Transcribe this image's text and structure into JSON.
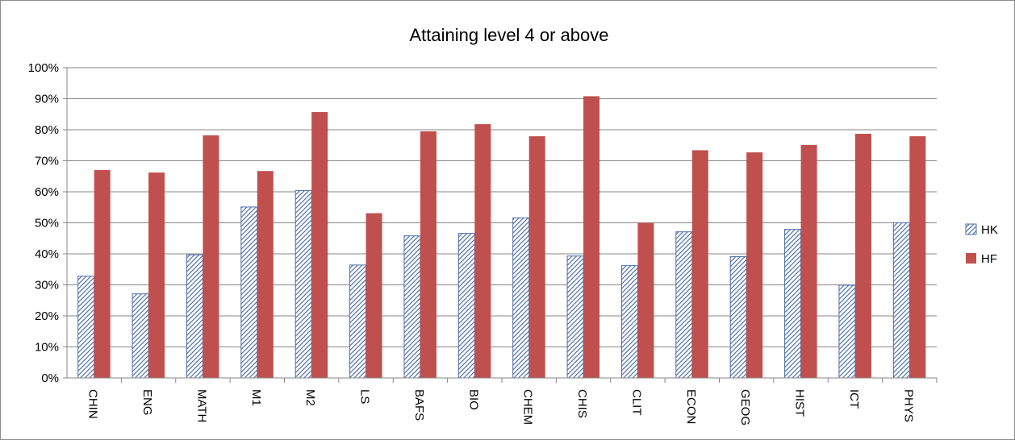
{
  "chart_data": {
    "type": "bar",
    "title": "Attaining level 4 or above",
    "xlabel": "",
    "ylabel": "",
    "ylim": [
      0,
      100
    ],
    "y_ticks": [
      "0%",
      "10%",
      "20%",
      "30%",
      "40%",
      "50%",
      "60%",
      "70%",
      "80%",
      "90%",
      "100%"
    ],
    "grid": true,
    "legend_position": "right",
    "categories": [
      "CHIN",
      "ENG",
      "MATH",
      "M1",
      "M2",
      "LS",
      "BAFS",
      "BIO",
      "CHEM",
      "CHIS",
      "CLIT",
      "ECON",
      "GEOG",
      "HIST",
      "ICT",
      "PHYS"
    ],
    "series": [
      {
        "name": "HK",
        "color": "#4f6fa8",
        "pattern": "diagonal-hatch",
        "values": [
          32.8,
          27.1,
          39.7,
          55.1,
          60.4,
          36.4,
          45.8,
          46.6,
          51.6,
          39.3,
          36.2,
          47.1,
          39.1,
          47.9,
          29.9,
          50.0
        ]
      },
      {
        "name": "HF",
        "color": "#c0504d",
        "pattern": "solid",
        "values": [
          67.0,
          66.2,
          78.2,
          66.7,
          85.7,
          53.1,
          79.5,
          81.8,
          77.9,
          90.8,
          50.0,
          73.4,
          72.7,
          75.1,
          78.7,
          77.9
        ]
      }
    ]
  }
}
